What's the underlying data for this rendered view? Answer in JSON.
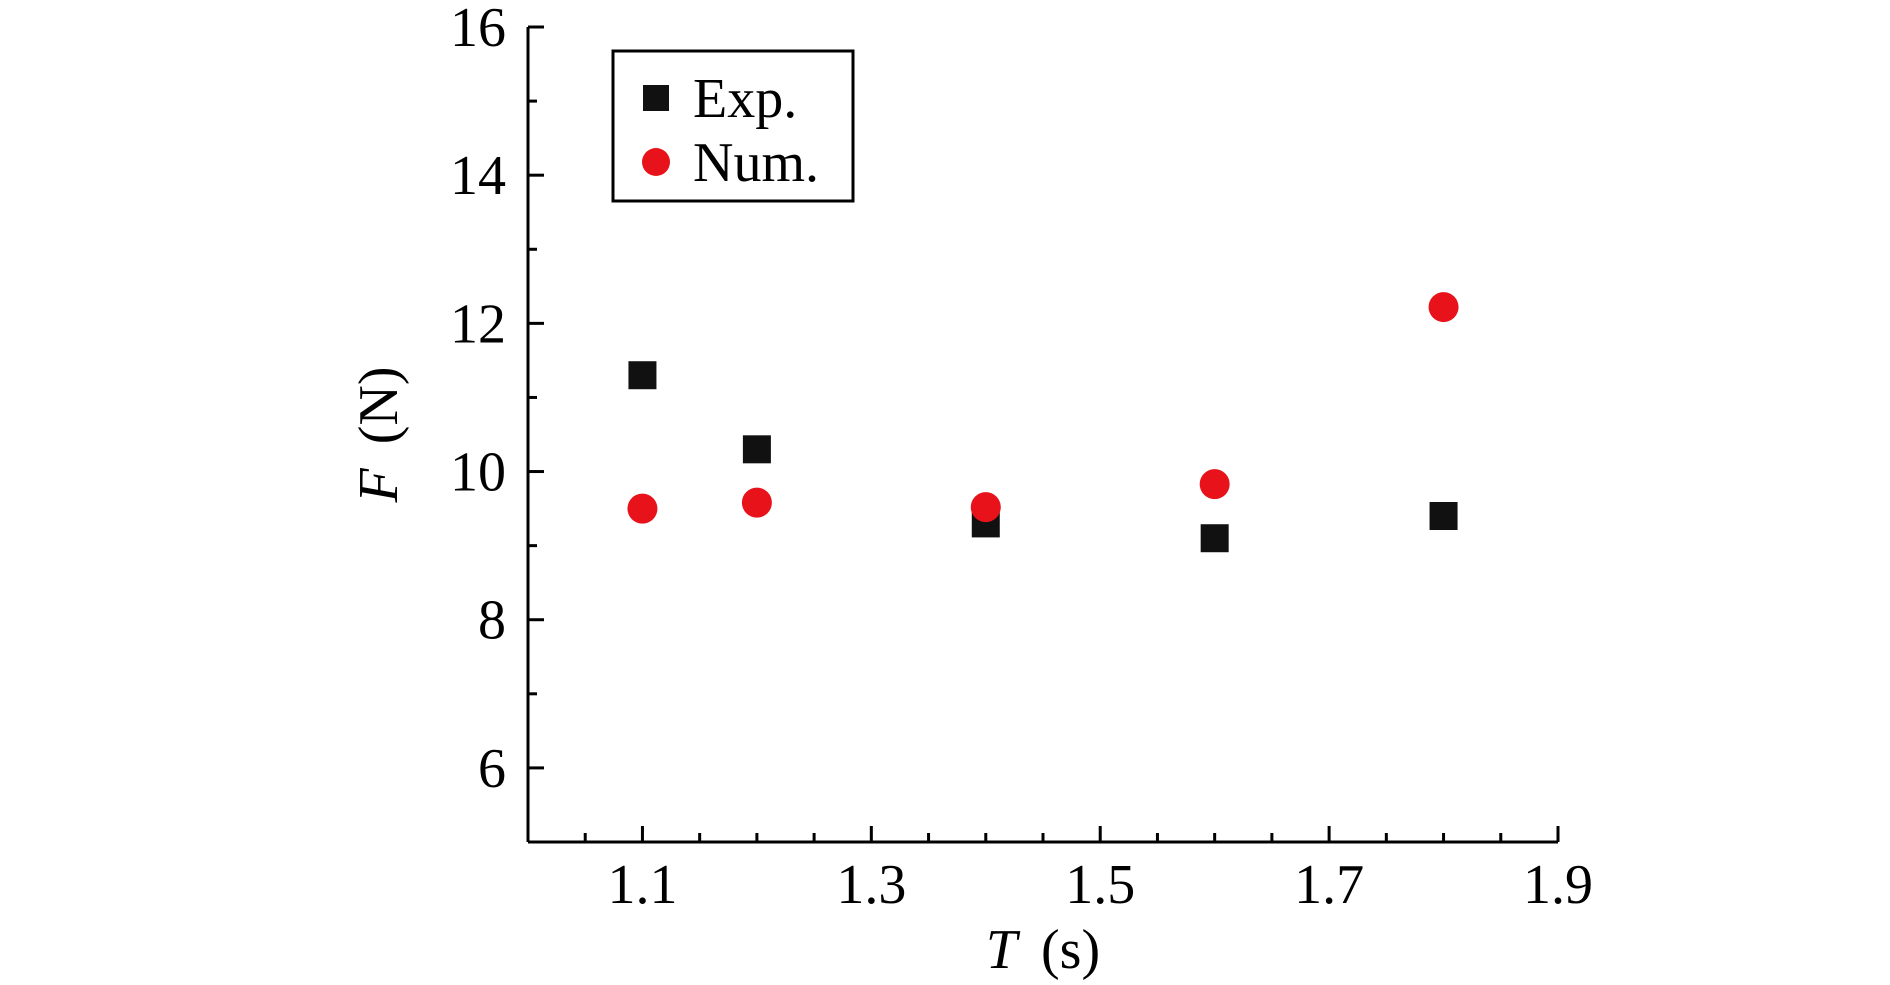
{
  "chart_data": {
    "type": "scatter",
    "title": "",
    "xlabel": {
      "symbol": "T",
      "unit": "(s)"
    },
    "ylabel": {
      "symbol": "F",
      "unit": "(N)"
    },
    "xlim": [
      1.0,
      1.9
    ],
    "ylim": [
      5,
      16
    ],
    "xticks": [
      "1.1",
      "1.3",
      "1.5",
      "1.7",
      "1.9"
    ],
    "yticks": [
      "6",
      "8",
      "10",
      "12",
      "14",
      "16"
    ],
    "grid": false,
    "legend_position": "top-left",
    "series": [
      {
        "name": "Exp.",
        "marker": "square",
        "color": "#111111",
        "x": [
          1.1,
          1.2,
          1.4,
          1.6,
          1.8
        ],
        "y": [
          11.3,
          10.3,
          9.3,
          9.1,
          9.4
        ]
      },
      {
        "name": "Num.",
        "marker": "circle",
        "color": "#e8121a",
        "x": [
          1.1,
          1.2,
          1.4,
          1.6,
          1.8
        ],
        "y": [
          9.5,
          9.58,
          9.52,
          9.83,
          12.22
        ]
      }
    ]
  }
}
